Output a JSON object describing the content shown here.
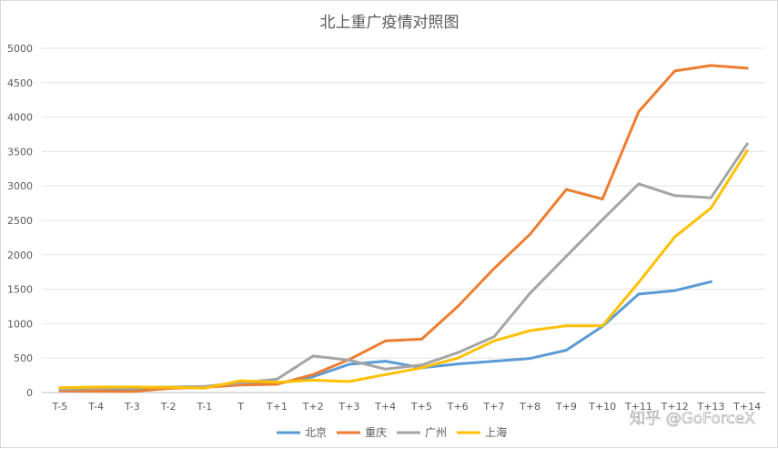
{
  "chart_data": {
    "type": "line",
    "title": "北上重广疫情对照图",
    "xlabel": "",
    "ylabel": "",
    "ylim": [
      0,
      5000
    ],
    "yticks": [
      0,
      500,
      1000,
      1500,
      2000,
      2500,
      3000,
      3500,
      4000,
      4500,
      5000
    ],
    "grid": true,
    "legend_position": "bottom",
    "categories": [
      "T-5",
      "T-4",
      "T-3",
      "T-2",
      "T-1",
      "T",
      "T+1",
      "T+2",
      "T+3",
      "T+4",
      "T+5",
      "T+6",
      "T+7",
      "T+8",
      "T+9",
      "T+10",
      "T+11",
      "T+12",
      "T+13",
      "T+14"
    ],
    "series": [
      {
        "name": "北京",
        "color": "#5B9BD5",
        "values": [
          40,
          45,
          55,
          75,
          85,
          120,
          130,
          230,
          410,
          455,
          360,
          415,
          455,
          495,
          615,
          960,
          1430,
          1480,
          1610,
          null
        ]
      },
      {
        "name": "重庆",
        "color": "#ED7D31",
        "values": [
          25,
          20,
          15,
          60,
          75,
          110,
          120,
          260,
          480,
          750,
          775,
          1250,
          1800,
          2300,
          2950,
          2810,
          4080,
          4670,
          4750,
          4710
        ]
      },
      {
        "name": "广州",
        "color": "#A5A5A5",
        "values": [
          45,
          60,
          70,
          80,
          90,
          140,
          195,
          530,
          470,
          340,
          400,
          580,
          810,
          1445,
          1980,
          2510,
          3030,
          2860,
          2830,
          3610
        ]
      },
      {
        "name": "上海",
        "color": "#FFC000",
        "values": [
          70,
          80,
          80,
          75,
          65,
          170,
          150,
          180,
          160,
          260,
          360,
          500,
          750,
          900,
          970,
          970,
          1600,
          2260,
          2680,
          3510
        ]
      }
    ]
  },
  "watermark": "知乎 @GoForceX"
}
